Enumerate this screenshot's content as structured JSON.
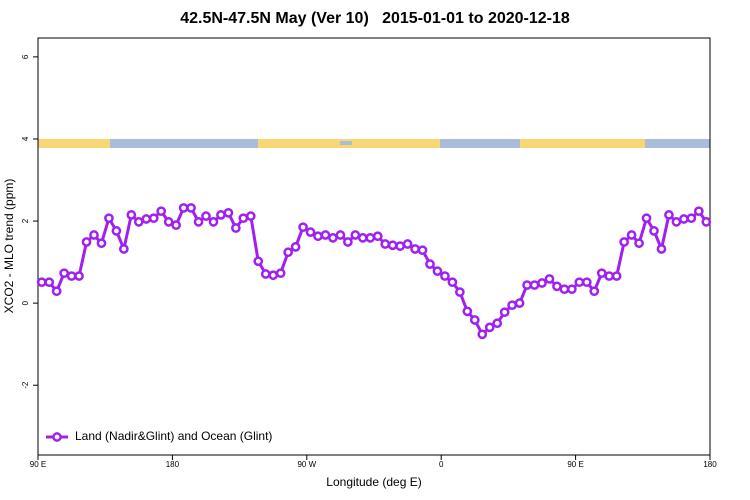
{
  "chart_data": {
    "type": "line",
    "title": "42.5N-47.5N May (Ver 10)   2015-01-01 to 2020-12-18",
    "x_label": "Longitude (deg E)",
    "y_label": "XCO2 - MLO trend (ppm)",
    "x": [
      92.5,
      97.5,
      102.5,
      107.5,
      112.5,
      117.5,
      122.5,
      127.5,
      132.5,
      137.5,
      142.5,
      147.5,
      152.5,
      157.5,
      162.5,
      167.5,
      172.5,
      177.5,
      182.5,
      187.5,
      192.5,
      197.5,
      202.5,
      207.5,
      212.5,
      217.5,
      222.5,
      227.5,
      232.5,
      237.5,
      242.5,
      247.5,
      252.5,
      257.5,
      262.5,
      267.5,
      272.5,
      277.5,
      282.5,
      287.5,
      292.5,
      297.5,
      302.5,
      307.5,
      312.5,
      317.5,
      322.5,
      327.5,
      332.5,
      337.5,
      342.5,
      347.5,
      352.5,
      357.5,
      362.5,
      367.5,
      372.5,
      377.5,
      382.5,
      387.5,
      392.5,
      397.5,
      402.5,
      407.5,
      412.5,
      417.5,
      422.5,
      427.5,
      432.5,
      437.5,
      442.5,
      447.5,
      452.5,
      457.5,
      462.5,
      467.5,
      472.5,
      477.5,
      482.5,
      487.5,
      492.5,
      497.5,
      502.5,
      507.5,
      512.5,
      517.5,
      522.5,
      527.5,
      532.5,
      537.5
    ],
    "series": [
      {
        "name": "Land (Nadir&Glint) and Ocean (Glint)",
        "color": "#a020f0",
        "values": [
          0.51,
          0.51,
          0.29,
          0.73,
          0.66,
          0.66,
          1.49,
          1.66,
          1.46,
          2.07,
          1.76,
          1.32,
          2.15,
          1.98,
          2.05,
          2.07,
          2.24,
          1.98,
          1.9,
          2.32,
          2.32,
          1.98,
          2.12,
          1.98,
          2.15,
          2.2,
          1.83,
          2.07,
          2.12,
          1.02,
          0.71,
          0.68,
          0.73,
          1.24,
          1.37,
          1.85,
          1.73,
          1.63,
          1.66,
          1.59,
          1.66,
          1.49,
          1.66,
          1.59,
          1.59,
          1.63,
          1.44,
          1.41,
          1.39,
          1.44,
          1.32,
          1.29,
          0.95,
          0.78,
          0.66,
          0.51,
          0.27,
          -0.2,
          -0.41,
          -0.76,
          -0.59,
          -0.49,
          -0.22,
          -0.05,
          0.0,
          0.44,
          0.44,
          0.49,
          0.59,
          0.41,
          0.34,
          0.34,
          0.51,
          0.51,
          0.29,
          0.73,
          0.66,
          0.66,
          1.49,
          1.66,
          1.46,
          2.07,
          1.76,
          1.32,
          2.15,
          1.98,
          2.05,
          2.07,
          2.24,
          1.98
        ]
      }
    ],
    "xlim": [
      90,
      540
    ],
    "xticks": [
      {
        "value": 90,
        "label": "90 E"
      },
      180,
      {
        "value": 270,
        "label": "90 W"
      },
      {
        "value": 360,
        "label": "0"
      },
      {
        "value": 450,
        "label": "90 E"
      },
      {
        "value": 540,
        "label": "180"
      }
    ],
    "ylim": [
      -3.7,
      6.46
    ],
    "yticks": [
      -2,
      0,
      2,
      4,
      6
    ],
    "legend": "bottom-left"
  }
}
